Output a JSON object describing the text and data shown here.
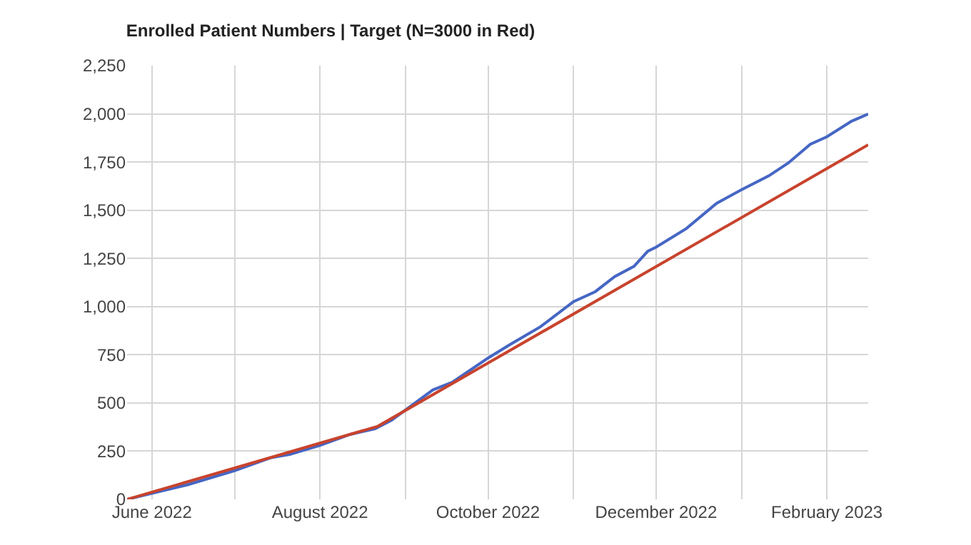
{
  "chart_data": {
    "type": "line",
    "title": "Enrolled Patient Numbers | Target (N=3000 in Red)",
    "series": [
      {
        "color": "#4566c4",
        "x": [
          "2022-05-23",
          "2022-06-01",
          "2022-06-14",
          "2022-07-01",
          "2022-07-14",
          "2022-07-21",
          "2022-08-01",
          "2022-08-12",
          "2022-08-21",
          "2022-08-27",
          "2022-09-01",
          "2022-09-11",
          "2022-09-18",
          "2022-10-01",
          "2022-10-09",
          "2022-10-20",
          "2022-11-01",
          "2022-11-09",
          "2022-11-16",
          "2022-11-23",
          "2022-11-28",
          "2022-12-01",
          "2022-12-12",
          "2022-12-23",
          "2023-01-01",
          "2023-01-11",
          "2023-01-18",
          "2023-01-26",
          "2023-02-01",
          "2023-02-10",
          "2023-02-16"
        ],
        "values": [
          0,
          31,
          76,
          149,
          215,
          233,
          280,
          337,
          366,
          411,
          463,
          568,
          607,
          733,
          803,
          895,
          1025,
          1078,
          1156,
          1209,
          1287,
          1308,
          1405,
          1536,
          1606,
          1679,
          1745,
          1842,
          1881,
          1962,
          1999
        ]
      },
      {
        "color": "#c8432d",
        "x": [
          "2022-05-23",
          "2022-08-22",
          "2023-02-16"
        ],
        "values": [
          0,
          379,
          1839
        ]
      }
    ],
    "xlim": [
      "2022-05-23",
      "2023-02-16"
    ],
    "xticks": [
      {
        "value": "2022-06-01",
        "label": "June 2022"
      },
      {
        "value": "2022-07-01",
        "label": null
      },
      {
        "value": "2022-08-01",
        "label": "August 2022"
      },
      {
        "value": "2022-09-01",
        "label": null
      },
      {
        "value": "2022-10-01",
        "label": "October 2022"
      },
      {
        "value": "2022-11-01",
        "label": null
      },
      {
        "value": "2022-12-01",
        "label": "December 2022"
      },
      {
        "value": "2023-01-01",
        "label": null
      },
      {
        "value": "2023-02-01",
        "label": "February 2023"
      }
    ],
    "ylim": [
      0,
      2250
    ],
    "yticks": [
      0,
      250,
      500,
      750,
      {
        "value": 1000,
        "label": "1,000"
      },
      {
        "value": 1250,
        "label": "1,250"
      },
      {
        "value": 1500,
        "label": "1,500"
      },
      {
        "value": 1750,
        "label": "1,750"
      },
      {
        "value": 2000,
        "label": "2,000"
      },
      {
        "value": 2250,
        "label": "2,250"
      }
    ],
    "grid": true,
    "marker": "none",
    "line_style": "solid"
  }
}
